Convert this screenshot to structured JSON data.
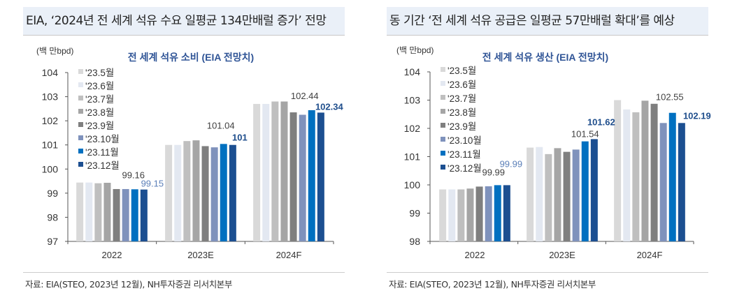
{
  "panels": [
    {
      "title": "EIA, ‘2024년 전 세계 석유 수요 일평균 134만배럴 증가’ 전망",
      "source": "자료: EIA(STEO, 2023년 12월), NH투자증권 리서치본부"
    },
    {
      "title": "동 기간 ‘전 세계 석유 공급은 일평균 57만배럴 확대’를 예상",
      "source": "자료: EIA(STEO, 2023년 12월), NH투자증권 리서치본부"
    }
  ],
  "chart_data": [
    {
      "type": "bar",
      "title": "전 세계 석유 소비 (EIA 전망치)",
      "ylabel": "(백 만bpd)",
      "ylim": [
        97,
        104
      ],
      "yticks": [
        97,
        98,
        99,
        100,
        101,
        102,
        103,
        104
      ],
      "categories": [
        "2022",
        "2023E",
        "2024F"
      ],
      "legend": "top-left",
      "series": [
        {
          "name": "'23.5월",
          "color": "#d9d9d9",
          "values": [
            99.44,
            101.0,
            102.7
          ]
        },
        {
          "name": "'23.6월",
          "color": "#e3e8f1",
          "values": [
            99.44,
            101.0,
            102.7
          ]
        },
        {
          "name": "'23.7월",
          "color": "#bfbfbf",
          "values": [
            99.41,
            101.16,
            102.8
          ]
        },
        {
          "name": "'23.8월",
          "color": "#a5a5a5",
          "values": [
            99.43,
            101.19,
            102.8
          ]
        },
        {
          "name": "'23.9월",
          "color": "#7f7f7f",
          "values": [
            99.17,
            100.95,
            102.35
          ]
        },
        {
          "name": "'23.10월",
          "color": "#7f92bc",
          "values": [
            99.17,
            100.9,
            102.25
          ]
        },
        {
          "name": "'23.11월",
          "color": "#0070c0",
          "values": [
            99.16,
            101.04,
            102.44
          ]
        },
        {
          "name": "'23.12월",
          "color": "#1c4f91",
          "values": [
            99.15,
            101.0,
            102.34
          ]
        }
      ],
      "annotations": [
        {
          "text": "99.16",
          "series": 6,
          "category": 0,
          "color": "#404040",
          "bold": false
        },
        {
          "text": "99.15",
          "series": 7,
          "category": 0,
          "color": "#5b7fb8",
          "bold": false
        },
        {
          "text": "101.04",
          "series": 6,
          "category": 1,
          "color": "#404040",
          "bold": false
        },
        {
          "text": "101",
          "series": 7,
          "category": 1,
          "color": "#1f4e8c",
          "bold": true
        },
        {
          "text": "102.44",
          "series": 6,
          "category": 2,
          "color": "#404040",
          "bold": false
        },
        {
          "text": "102.34",
          "series": 7,
          "category": 2,
          "color": "#1f4e8c",
          "bold": true
        }
      ]
    },
    {
      "type": "bar",
      "title": "전 세계 석유 생산 (EIA 전망치)",
      "ylabel": "(백 만bpd)",
      "ylim": [
        98,
        104
      ],
      "yticks": [
        98,
        99,
        100,
        101,
        102,
        103,
        104
      ],
      "categories": [
        "2022",
        "2023E",
        "2024F"
      ],
      "legend": "top-left",
      "series": [
        {
          "name": "'23.5월",
          "color": "#d9d9d9",
          "values": [
            99.84,
            101.32,
            103.0
          ]
        },
        {
          "name": "'23.6월",
          "color": "#e3e8f1",
          "values": [
            99.84,
            101.34,
            102.67
          ]
        },
        {
          "name": "'23.7월",
          "color": "#bfbfbf",
          "values": [
            99.84,
            101.09,
            102.57
          ]
        },
        {
          "name": "'23.8월",
          "color": "#a5a5a5",
          "values": [
            99.87,
            101.3,
            102.98
          ]
        },
        {
          "name": "'23.9월",
          "color": "#7f7f7f",
          "values": [
            99.94,
            101.17,
            102.87
          ]
        },
        {
          "name": "'23.10월",
          "color": "#7f92bc",
          "values": [
            99.95,
            101.25,
            102.19
          ]
        },
        {
          "name": "'23.11월",
          "color": "#0070c0",
          "values": [
            99.99,
            101.54,
            102.55
          ]
        },
        {
          "name": "'23.12월",
          "color": "#1c4f91",
          "values": [
            99.99,
            101.62,
            102.19
          ]
        }
      ],
      "annotations": [
        {
          "text": "99.99",
          "series": 6,
          "category": 0,
          "color": "#404040",
          "bold": false
        },
        {
          "text": "99.99",
          "series": 7,
          "category": 0,
          "color": "#5b7fb8",
          "bold": false
        },
        {
          "text": "101.54",
          "series": 6,
          "category": 1,
          "color": "#404040",
          "bold": false
        },
        {
          "text": "101.62",
          "series": 7,
          "category": 1,
          "color": "#1f4e8c",
          "bold": true
        },
        {
          "text": "102.55",
          "series": 6,
          "category": 2,
          "color": "#404040",
          "bold": false
        },
        {
          "text": "102.19",
          "series": 7,
          "category": 2,
          "color": "#1f4e8c",
          "bold": true
        }
      ]
    }
  ]
}
